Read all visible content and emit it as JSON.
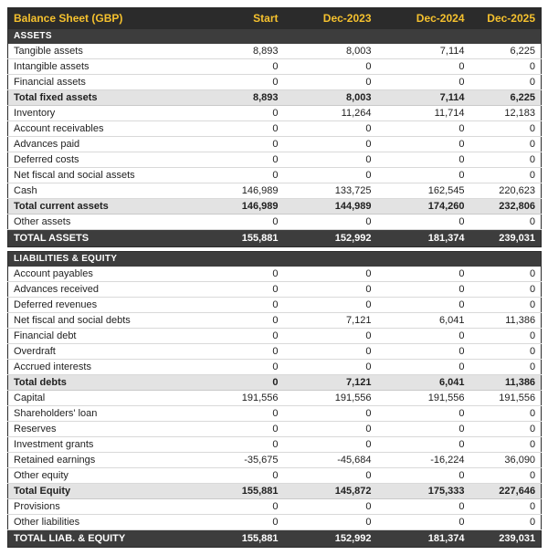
{
  "colors": {
    "header_bg": "#2b2b2b",
    "accent_gold": "#f5c12e",
    "section_bg": "#3d3d3d",
    "subtotal_bg": "#e3e3e3"
  },
  "table": {
    "title": "Balance Sheet (GBP)",
    "columns": [
      "Start",
      "Dec-2023",
      "Dec-2024",
      "Dec-2025"
    ],
    "sections": [
      {
        "header": "ASSETS",
        "rows": [
          {
            "label": "Tangible assets",
            "values": [
              "8,893",
              "8,003",
              "7,114",
              "6,225"
            ],
            "style": "normal"
          },
          {
            "label": "Intangible assets",
            "values": [
              "0",
              "0",
              "0",
              "0"
            ],
            "style": "normal"
          },
          {
            "label": "Financial assets",
            "values": [
              "0",
              "0",
              "0",
              "0"
            ],
            "style": "normal"
          },
          {
            "label": "Total fixed assets",
            "values": [
              "8,893",
              "8,003",
              "7,114",
              "6,225"
            ],
            "style": "subtotal"
          },
          {
            "label": "Inventory",
            "values": [
              "0",
              "11,264",
              "11,714",
              "12,183"
            ],
            "style": "normal"
          },
          {
            "label": "Account receivables",
            "values": [
              "0",
              "0",
              "0",
              "0"
            ],
            "style": "normal"
          },
          {
            "label": "Advances paid",
            "values": [
              "0",
              "0",
              "0",
              "0"
            ],
            "style": "normal"
          },
          {
            "label": "Deferred costs",
            "values": [
              "0",
              "0",
              "0",
              "0"
            ],
            "style": "normal"
          },
          {
            "label": "Net fiscal and social assets",
            "values": [
              "0",
              "0",
              "0",
              "0"
            ],
            "style": "normal"
          },
          {
            "label": "Cash",
            "values": [
              "146,989",
              "133,725",
              "162,545",
              "220,623"
            ],
            "style": "normal"
          },
          {
            "label": "Total current assets",
            "values": [
              "146,989",
              "144,989",
              "174,260",
              "232,806"
            ],
            "style": "subtotal"
          },
          {
            "label": "Other assets",
            "values": [
              "0",
              "0",
              "0",
              "0"
            ],
            "style": "normal"
          },
          {
            "label": "TOTAL ASSETS",
            "values": [
              "155,881",
              "152,992",
              "181,374",
              "239,031"
            ],
            "style": "grand"
          }
        ]
      },
      {
        "header": "LIABILITIES & EQUITY",
        "rows": [
          {
            "label": "Account payables",
            "values": [
              "0",
              "0",
              "0",
              "0"
            ],
            "style": "normal"
          },
          {
            "label": "Advances received",
            "values": [
              "0",
              "0",
              "0",
              "0"
            ],
            "style": "normal"
          },
          {
            "label": "Deferred revenues",
            "values": [
              "0",
              "0",
              "0",
              "0"
            ],
            "style": "normal"
          },
          {
            "label": "Net fiscal and social debts",
            "values": [
              "0",
              "7,121",
              "6,041",
              "11,386"
            ],
            "style": "normal"
          },
          {
            "label": "Financial debt",
            "values": [
              "0",
              "0",
              "0",
              "0"
            ],
            "style": "normal"
          },
          {
            "label": "Overdraft",
            "values": [
              "0",
              "0",
              "0",
              "0"
            ],
            "style": "normal"
          },
          {
            "label": "Accrued interests",
            "values": [
              "0",
              "0",
              "0",
              "0"
            ],
            "style": "normal"
          },
          {
            "label": "Total debts",
            "values": [
              "0",
              "7,121",
              "6,041",
              "11,386"
            ],
            "style": "subtotal"
          },
          {
            "label": "Capital",
            "values": [
              "191,556",
              "191,556",
              "191,556",
              "191,556"
            ],
            "style": "normal"
          },
          {
            "label": "Shareholders' loan",
            "values": [
              "0",
              "0",
              "0",
              "0"
            ],
            "style": "normal"
          },
          {
            "label": "Reserves",
            "values": [
              "0",
              "0",
              "0",
              "0"
            ],
            "style": "normal"
          },
          {
            "label": "Investment grants",
            "values": [
              "0",
              "0",
              "0",
              "0"
            ],
            "style": "normal"
          },
          {
            "label": "Retained earnings",
            "values": [
              "-35,675",
              "-45,684",
              "-16,224",
              "36,090"
            ],
            "style": "normal"
          },
          {
            "label": "Other equity",
            "values": [
              "0",
              "0",
              "0",
              "0"
            ],
            "style": "normal"
          },
          {
            "label": "Total Equity",
            "values": [
              "155,881",
              "145,872",
              "175,333",
              "227,646"
            ],
            "style": "subtotal"
          },
          {
            "label": "Provisions",
            "values": [
              "0",
              "0",
              "0",
              "0"
            ],
            "style": "normal"
          },
          {
            "label": "Other liabilities",
            "values": [
              "0",
              "0",
              "0",
              "0"
            ],
            "style": "normal"
          },
          {
            "label": "TOTAL LIAB. & EQUITY",
            "values": [
              "155,881",
              "152,992",
              "181,374",
              "239,031"
            ],
            "style": "grand"
          }
        ]
      }
    ]
  }
}
